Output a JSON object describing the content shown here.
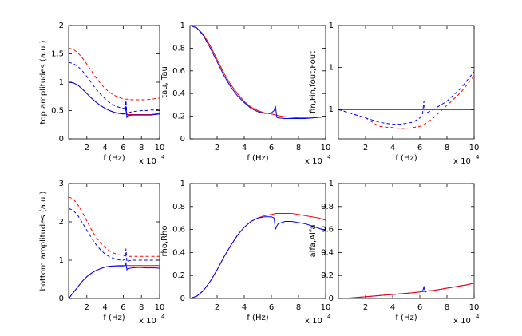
{
  "chart_data": [
    {
      "type": "line",
      "ylabel": "top amplitudes (a.u.)",
      "xlabel": "f (Hz)",
      "x_multiplier": "x 10",
      "x_exponent": "4",
      "x": [
        0,
        5000,
        10000,
        15000,
        20000,
        25000,
        30000,
        35000,
        40000,
        45000,
        50000,
        55000,
        60000,
        62000,
        63000,
        64000,
        65000,
        70000,
        75000,
        80000,
        85000,
        90000,
        95000,
        100000
      ],
      "xlim": [
        0,
        100000
      ],
      "xticks": [
        {
          "value": 20000,
          "label": "2"
        },
        {
          "value": 40000,
          "label": "4"
        },
        {
          "value": 60000,
          "label": "6"
        },
        {
          "value": 80000,
          "label": "8"
        },
        {
          "value": 100000,
          "label": "10"
        }
      ],
      "ylim": [
        0,
        2
      ],
      "yticks": [
        0,
        0.5,
        1,
        1.5,
        2
      ],
      "series": [
        {
          "color": "#ff0000",
          "dash": "dashed",
          "values": [
            1.6,
            1.58,
            1.52,
            1.43,
            1.32,
            1.2,
            1.08,
            0.98,
            0.89,
            0.82,
            0.77,
            0.73,
            0.71,
            0.705,
            0.7,
            0.7,
            0.7,
            0.69,
            0.69,
            0.69,
            0.69,
            0.7,
            0.71,
            0.72
          ]
        },
        {
          "color": "#0000ff",
          "dash": "dashed",
          "values": [
            1.35,
            1.33,
            1.28,
            1.2,
            1.1,
            0.99,
            0.88,
            0.79,
            0.71,
            0.64,
            0.59,
            0.56,
            0.54,
            0.55,
            0.68,
            0.42,
            0.46,
            0.48,
            0.49,
            0.5,
            0.5,
            0.51,
            0.51,
            0.52
          ]
        },
        {
          "color": "#ff0000",
          "dash": "solid",
          "values": [
            1.0,
            0.99,
            0.95,
            0.88,
            0.8,
            0.72,
            0.65,
            0.59,
            0.54,
            0.5,
            0.47,
            0.45,
            0.44,
            0.44,
            0.44,
            0.44,
            0.43,
            0.43,
            0.43,
            0.43,
            0.43,
            0.43,
            0.44,
            0.45
          ]
        },
        {
          "color": "#0000ff",
          "dash": "solid",
          "values": [
            1.0,
            0.99,
            0.95,
            0.88,
            0.8,
            0.72,
            0.65,
            0.59,
            0.54,
            0.5,
            0.47,
            0.45,
            0.44,
            0.46,
            0.58,
            0.38,
            0.41,
            0.42,
            0.42,
            0.42,
            0.42,
            0.42,
            0.43,
            0.44
          ]
        }
      ]
    },
    {
      "type": "line",
      "ylabel": "tau, Tau",
      "xlabel": "f (Hz)",
      "x_multiplier": "x 10",
      "x_exponent": "4",
      "x": [
        0,
        5000,
        10000,
        15000,
        20000,
        25000,
        30000,
        35000,
        40000,
        45000,
        50000,
        55000,
        60000,
        62000,
        63000,
        64000,
        65000,
        70000,
        75000,
        80000,
        85000,
        90000,
        95000,
        100000
      ],
      "xlim": [
        0,
        100000
      ],
      "xticks": [
        {
          "value": 20000,
          "label": "2"
        },
        {
          "value": 40000,
          "label": "4"
        },
        {
          "value": 60000,
          "label": "6"
        },
        {
          "value": 80000,
          "label": "8"
        },
        {
          "value": 100000,
          "label": "10"
        }
      ],
      "ylim": [
        0,
        1
      ],
      "yticks": [
        0,
        0.2,
        0.4,
        0.6,
        0.8,
        1
      ],
      "series": [
        {
          "color": "#ff0000",
          "dash": "solid",
          "values": [
            1.0,
            0.98,
            0.92,
            0.82,
            0.7,
            0.58,
            0.48,
            0.4,
            0.33,
            0.28,
            0.25,
            0.23,
            0.22,
            0.215,
            0.21,
            0.21,
            0.205,
            0.195,
            0.19,
            0.185,
            0.185,
            0.185,
            0.19,
            0.2
          ]
        },
        {
          "color": "#0000ff",
          "dash": "solid",
          "values": [
            1.0,
            0.98,
            0.91,
            0.8,
            0.68,
            0.56,
            0.46,
            0.38,
            0.32,
            0.27,
            0.24,
            0.225,
            0.23,
            0.25,
            0.29,
            0.19,
            0.185,
            0.18,
            0.18,
            0.18,
            0.18,
            0.185,
            0.19,
            0.195
          ]
        }
      ]
    },
    {
      "type": "line",
      "ylabel": "fin,Fin,fout,Fout",
      "xlabel": "f (Hz)",
      "x_multiplier": "x 10",
      "x_exponent": "4",
      "x": [
        0,
        5000,
        10000,
        15000,
        20000,
        25000,
        30000,
        35000,
        40000,
        45000,
        50000,
        55000,
        60000,
        62000,
        63000,
        64000,
        65000,
        70000,
        75000,
        80000,
        85000,
        90000,
        95000,
        100000
      ],
      "xlim": [
        0,
        100000
      ],
      "xticks": [
        {
          "value": 20000,
          "label": "2"
        },
        {
          "value": 40000,
          "label": "4"
        },
        {
          "value": 60000,
          "label": "6"
        },
        {
          "value": 80000,
          "label": "8"
        },
        {
          "value": 100000,
          "label": "10"
        }
      ],
      "ylim": [
        0.99993,
        1.0002
      ],
      "yticks": [
        {
          "value": 1.0,
          "label": "1"
        },
        {
          "value": 1.0001,
          "label": "1"
        },
        {
          "value": 1.0002,
          "label": "1"
        }
      ],
      "series": [
        {
          "color": "#ff0000",
          "dash": "dashed",
          "values": [
            1.0,
            0.999995,
            0.99999,
            0.999985,
            0.99998,
            0.99997,
            0.99996,
            0.999958,
            0.999957,
            0.999955,
            0.999955,
            0.999957,
            0.99996,
            0.999962,
            0.999964,
            0.999966,
            0.999968,
            0.99998,
            0.999995,
            1.00001,
            1.000025,
            1.00004,
            1.00006,
            1.00008
          ]
        },
        {
          "color": "#0000ff",
          "dash": "dashed",
          "values": [
            1.0,
            0.999995,
            0.99999,
            0.999985,
            0.99998,
            0.999975,
            0.99997,
            0.999967,
            0.999965,
            0.999965,
            0.999967,
            0.99997,
            0.99998,
            0.99999,
            1.00002,
            0.99999,
            0.999992,
            1.0,
            1.00001,
            1.00002,
            1.000035,
            1.00005,
            1.00007,
            1.00009
          ]
        },
        {
          "color": "#0000ff",
          "dash": "solid",
          "values": [
            1.0,
            1.0,
            1.0,
            1.0,
            1.0,
            1.0,
            1.0,
            1.0,
            1.0,
            1.0,
            1.0,
            1.0,
            1.0,
            1.0,
            1.0,
            1.0,
            1.0,
            1.0,
            1.0,
            1.0,
            1.0,
            1.0,
            1.0,
            1.0
          ]
        },
        {
          "color": "#ff0000",
          "dash": "solid",
          "values": [
            1.0,
            1.0,
            1.0,
            1.0,
            1.0,
            1.0,
            1.0,
            1.0,
            1.0,
            1.0,
            1.0,
            1.0,
            1.0,
            1.0,
            1.0,
            1.0,
            1.0,
            1.0,
            1.0,
            1.0,
            1.0,
            1.0,
            1.0,
            1.0
          ]
        }
      ]
    },
    {
      "type": "line",
      "ylabel": "bottom amplitudes (a.u.)",
      "xlabel": "f (Hz)",
      "x_multiplier": "x 10",
      "x_exponent": "4",
      "x": [
        0,
        5000,
        10000,
        15000,
        20000,
        25000,
        30000,
        35000,
        40000,
        45000,
        50000,
        55000,
        60000,
        62000,
        63000,
        64000,
        65000,
        70000,
        75000,
        80000,
        85000,
        90000,
        95000,
        100000
      ],
      "xlim": [
        0,
        100000
      ],
      "xticks": [
        {
          "value": 20000,
          "label": "2"
        },
        {
          "value": 40000,
          "label": "4"
        },
        {
          "value": 60000,
          "label": "6"
        },
        {
          "value": 80000,
          "label": "8"
        },
        {
          "value": 100000,
          "label": "10"
        }
      ],
      "ylim": [
        0,
        3
      ],
      "yticks": [
        0,
        1,
        2,
        3
      ],
      "series": [
        {
          "color": "#ff0000",
          "dash": "dashed",
          "values": [
            2.65,
            2.6,
            2.45,
            2.25,
            2.02,
            1.8,
            1.6,
            1.45,
            1.33,
            1.24,
            1.18,
            1.14,
            1.12,
            1.11,
            1.11,
            1.11,
            1.1,
            1.1,
            1.1,
            1.1,
            1.1,
            1.1,
            1.1,
            1.1
          ]
        },
        {
          "color": "#0000ff",
          "dash": "dashed",
          "values": [
            2.35,
            2.3,
            2.17,
            1.98,
            1.78,
            1.58,
            1.41,
            1.27,
            1.16,
            1.09,
            1.04,
            1.01,
            1.0,
            1.02,
            1.3,
            0.95,
            0.98,
            1.0,
            1.0,
            1.0,
            1.0,
            1.0,
            1.0,
            1.0
          ]
        },
        {
          "color": "#ff0000",
          "dash": "solid",
          "values": [
            0,
            0.15,
            0.3,
            0.45,
            0.57,
            0.66,
            0.73,
            0.78,
            0.82,
            0.84,
            0.85,
            0.86,
            0.86,
            0.86,
            0.86,
            0.86,
            0.86,
            0.86,
            0.86,
            0.86,
            0.86,
            0.86,
            0.86,
            0.86
          ]
        },
        {
          "color": "#0000ff",
          "dash": "solid",
          "values": [
            0,
            0.15,
            0.3,
            0.45,
            0.57,
            0.66,
            0.73,
            0.78,
            0.82,
            0.84,
            0.85,
            0.85,
            0.85,
            0.86,
            0.92,
            0.75,
            0.78,
            0.8,
            0.81,
            0.81,
            0.8,
            0.8,
            0.8,
            0.79
          ]
        }
      ]
    },
    {
      "type": "line",
      "ylabel": "rho,Rho",
      "xlabel": "f (Hz)",
      "x_multiplier": "x 10",
      "x_exponent": "4",
      "x": [
        0,
        5000,
        10000,
        15000,
        20000,
        25000,
        30000,
        35000,
        40000,
        45000,
        50000,
        55000,
        60000,
        62000,
        63000,
        64000,
        65000,
        70000,
        75000,
        80000,
        85000,
        90000,
        95000,
        100000
      ],
      "xlim": [
        0,
        100000
      ],
      "xticks": [
        {
          "value": 20000,
          "label": "2"
        },
        {
          "value": 40000,
          "label": "4"
        },
        {
          "value": 60000,
          "label": "6"
        },
        {
          "value": 80000,
          "label": "8"
        },
        {
          "value": 100000,
          "label": "10"
        }
      ],
      "ylim": [
        0,
        1
      ],
      "yticks": [
        0,
        0.2,
        0.4,
        0.6,
        0.8,
        1
      ],
      "series": [
        {
          "color": "#ff0000",
          "dash": "solid",
          "values": [
            0,
            0.02,
            0.07,
            0.15,
            0.25,
            0.36,
            0.46,
            0.55,
            0.62,
            0.67,
            0.7,
            0.72,
            0.73,
            0.735,
            0.74,
            0.74,
            0.74,
            0.74,
            0.74,
            0.73,
            0.72,
            0.71,
            0.7,
            0.68
          ]
        },
        {
          "color": "#0000ff",
          "dash": "solid",
          "values": [
            0,
            0.02,
            0.07,
            0.15,
            0.25,
            0.36,
            0.46,
            0.55,
            0.62,
            0.67,
            0.7,
            0.71,
            0.71,
            0.7,
            0.6,
            0.63,
            0.65,
            0.67,
            0.67,
            0.66,
            0.65,
            0.63,
            0.61,
            0.59
          ]
        }
      ]
    },
    {
      "type": "line",
      "ylabel": "alfa,Alfa",
      "xlabel": "f (Hz)",
      "x_multiplier": "x 10",
      "x_exponent": "4",
      "x": [
        0,
        5000,
        10000,
        15000,
        20000,
        25000,
        30000,
        35000,
        40000,
        45000,
        50000,
        55000,
        60000,
        62000,
        63000,
        64000,
        65000,
        70000,
        75000,
        80000,
        85000,
        90000,
        95000,
        100000
      ],
      "xlim": [
        0,
        100000
      ],
      "xticks": [
        {
          "value": 20000,
          "label": "2"
        },
        {
          "value": 40000,
          "label": "4"
        },
        {
          "value": 60000,
          "label": "6"
        },
        {
          "value": 80000,
          "label": "8"
        },
        {
          "value": 100000,
          "label": "10"
        }
      ],
      "ylim": [
        0,
        1
      ],
      "yticks": [
        0,
        0.2,
        0.4,
        0.6,
        0.8,
        1
      ],
      "series": [
        {
          "color": "#0000ff",
          "dash": "solid",
          "values": [
            0,
            0.002,
            0.005,
            0.01,
            0.015,
            0.02,
            0.025,
            0.03,
            0.035,
            0.04,
            0.045,
            0.05,
            0.057,
            0.063,
            0.1,
            0.055,
            0.065,
            0.07,
            0.08,
            0.09,
            0.1,
            0.11,
            0.12,
            0.135
          ]
        },
        {
          "color": "#ff0000",
          "dash": "solid",
          "values": [
            0,
            0.002,
            0.005,
            0.01,
            0.015,
            0.02,
            0.025,
            0.03,
            0.035,
            0.04,
            0.045,
            0.05,
            0.057,
            0.06,
            0.062,
            0.063,
            0.065,
            0.07,
            0.08,
            0.09,
            0.1,
            0.11,
            0.12,
            0.135
          ]
        }
      ]
    }
  ]
}
